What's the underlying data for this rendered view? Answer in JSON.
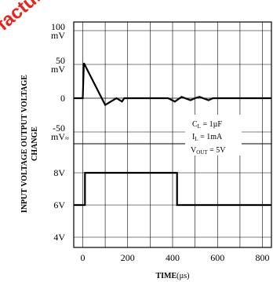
{
  "chart_data": {
    "type": "line",
    "x_axis": {
      "label_main": "TIME",
      "label_unit": "(µs)",
      "range": [
        -40,
        840
      ],
      "ticks": [
        {
          "value": 0,
          "label": "0"
        },
        {
          "value": 200,
          "label": "200"
        },
        {
          "value": 400,
          "label": "400"
        },
        {
          "value": 600,
          "label": "600"
        },
        {
          "value": 800,
          "label": "800"
        }
      ],
      "minor_gridlines": [
        100,
        300,
        500,
        700
      ]
    },
    "top_panel": {
      "ylabel_line1": "OUTPUT VOLTAGE",
      "ylabel_line2": "CHANGE",
      "unit": "mV",
      "range": [
        -100,
        100
      ],
      "ticks": [
        {
          "value": 100,
          "label_num": "100",
          "label_unit": "mV"
        },
        {
          "value": 50,
          "label_num": "50",
          "label_unit": "mV"
        },
        {
          "value": 0,
          "label_num": "0",
          "label_unit": ""
        },
        {
          "value": -50,
          "label_num": "-50",
          "label_unit": "mV"
        }
      ],
      "series": {
        "x": [
          -40,
          0,
          5,
          100,
          150,
          175,
          185,
          195,
          380,
          410,
          440,
          480,
          500,
          520,
          560,
          580,
          600,
          840
        ],
        "y": [
          0,
          0,
          52,
          -10,
          0,
          -5,
          0,
          0,
          0,
          -5,
          2,
          -3,
          0,
          2,
          -3,
          0,
          0,
          0
        ]
      },
      "annotations": [
        {
          "main": "C",
          "sub": "L",
          "rest": " = 1µF"
        },
        {
          "main": "I",
          "sub": "L",
          "rest": " = 1mA"
        },
        {
          "main": "V",
          "sub": "OUT",
          "rest": " = 5V"
        }
      ]
    },
    "bottom_panel": {
      "ylabel": "INPUT VOLTAGE",
      "unit": "V",
      "range": [
        4,
        9
      ],
      "ticks": [
        {
          "value": 8,
          "label": "8V"
        },
        {
          "value": 6,
          "label": "6V"
        },
        {
          "value": 4,
          "label": "4V"
        }
      ],
      "series": {
        "x": [
          -40,
          10,
          10,
          420,
          420,
          840
        ],
        "y": [
          6,
          6,
          8,
          8,
          6,
          6
        ]
      }
    },
    "watermark": "facture",
    "grid": true
  }
}
